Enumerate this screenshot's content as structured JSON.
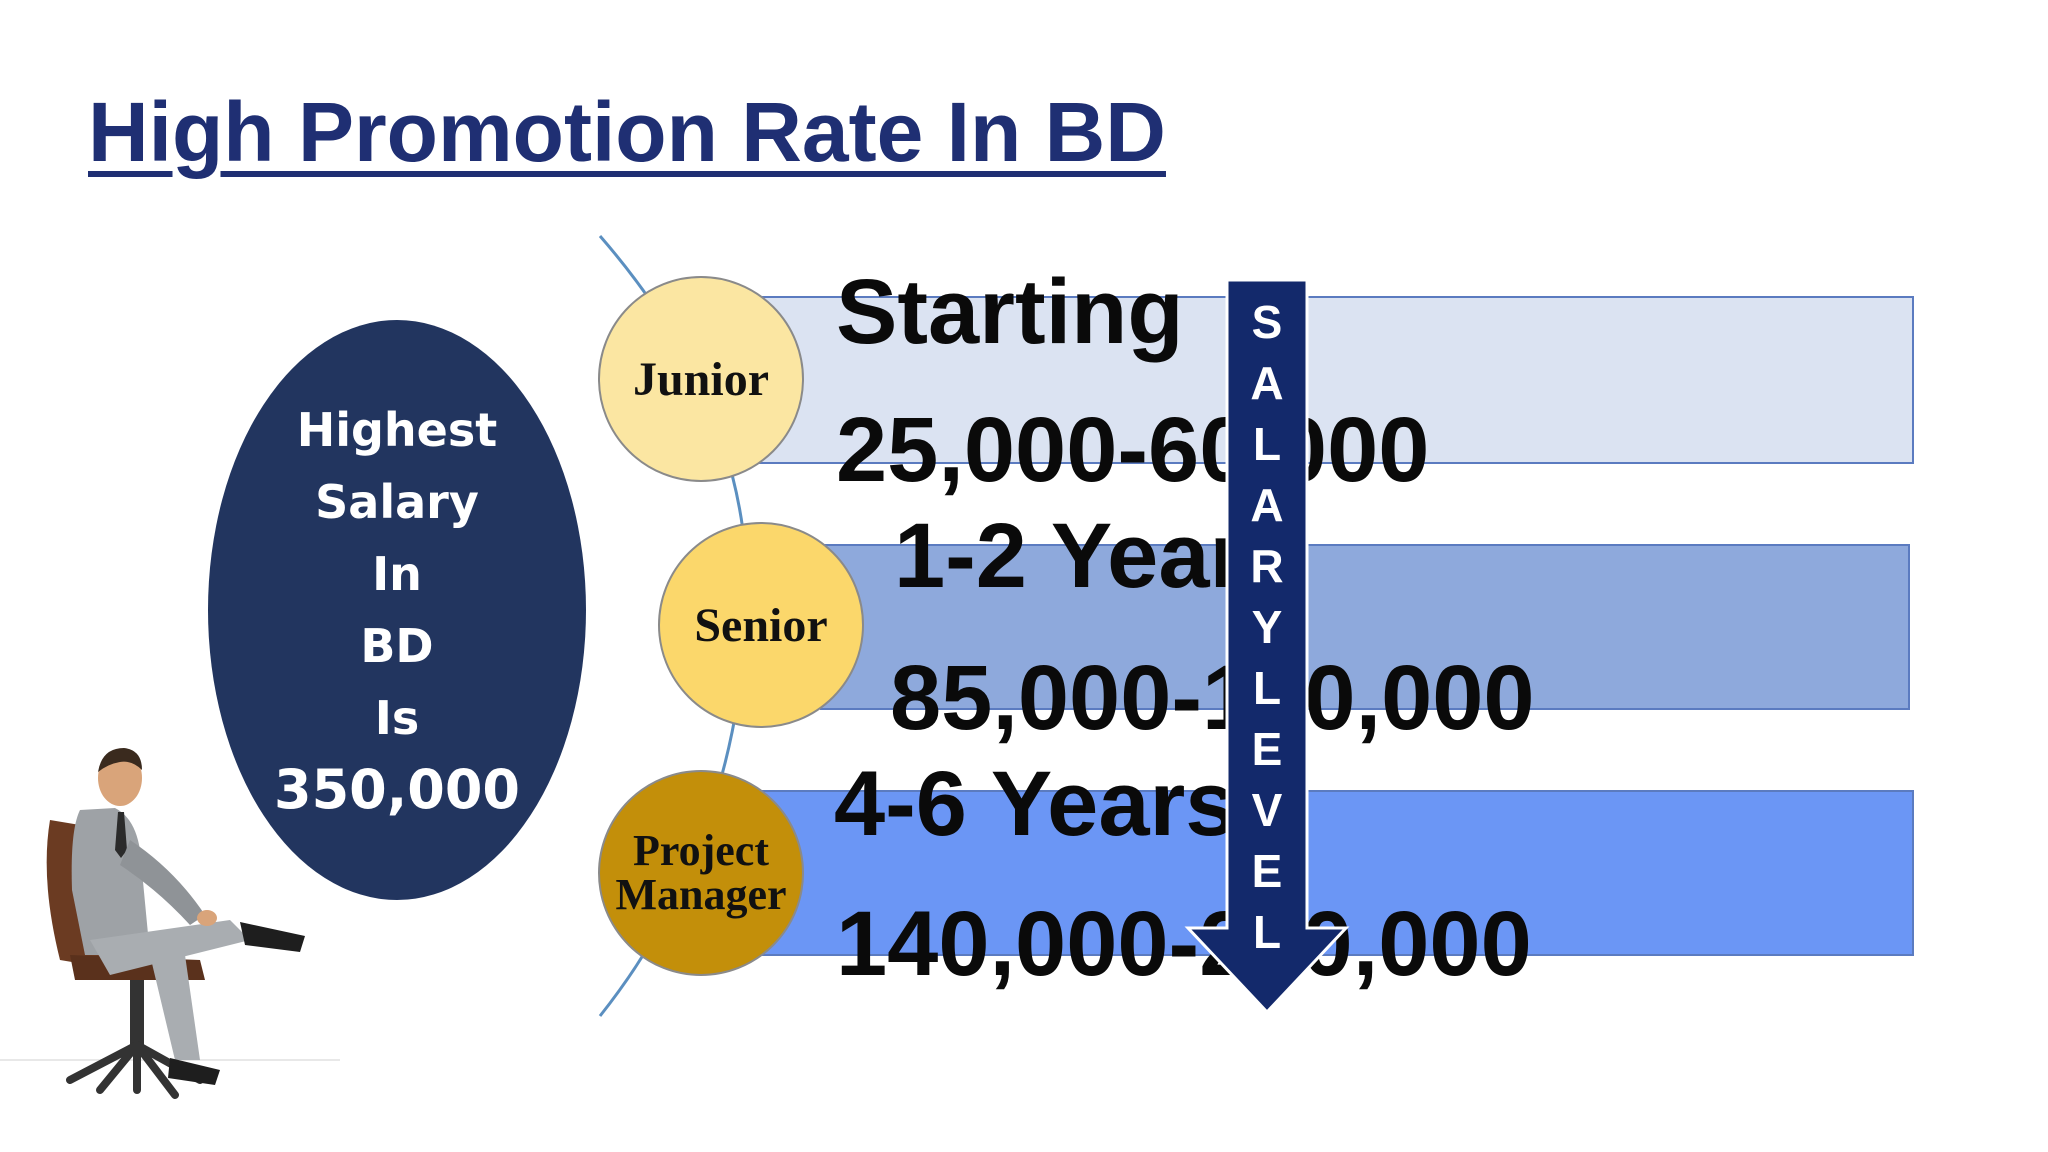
{
  "title": "High Promotion Rate In BD",
  "oval": {
    "lines": [
      "Highest",
      "Salary",
      "In",
      "BD",
      "Is",
      "350,000"
    ]
  },
  "levels": [
    {
      "role": "Junior",
      "heading": "Starting",
      "salary": "25,000-60,000"
    },
    {
      "role": "Senior",
      "heading": "1-2  Years",
      "salary": "85,000-120,000"
    },
    {
      "role_line1": "Project",
      "role_line2": "Manager",
      "heading": "4-6  Years",
      "salary": "140,000-200,000"
    }
  ],
  "arrow": {
    "letters": [
      "S",
      "A",
      "L",
      "A",
      "R",
      "Y",
      "L",
      "E",
      "V",
      "E",
      "L"
    ]
  },
  "colors": {
    "title": "#1f2f73",
    "oval": "#22355f",
    "band_light": "#dbe3f2",
    "band_mid": "#8ea9dc",
    "band_dark": "#6b96f5",
    "arrow": "#13296b",
    "junior": "#fbe6a2",
    "senior": "#fbd76b",
    "manager": "#c38f0a"
  }
}
